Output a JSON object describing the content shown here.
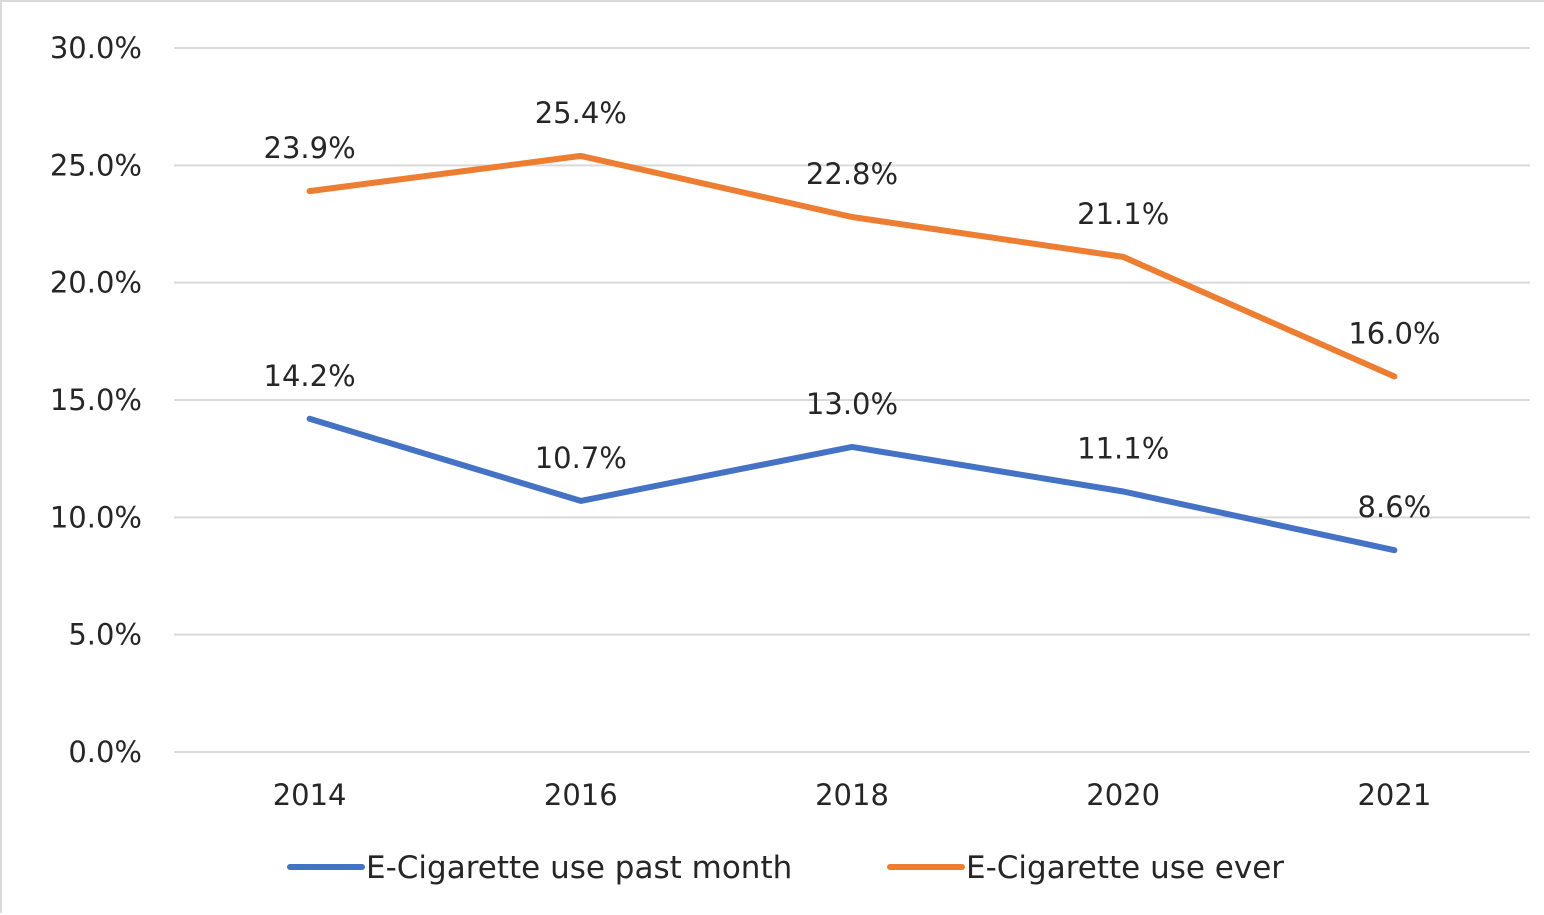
{
  "chart_data": {
    "type": "line",
    "categories": [
      "2014",
      "2016",
      "2018",
      "2020",
      "2021"
    ],
    "series": [
      {
        "name": "E-Cigarette use past month",
        "values": [
          14.2,
          10.7,
          13.0,
          11.1,
          8.6
        ],
        "labels": [
          "14.2%",
          "10.7%",
          "13.0%",
          "11.1%",
          "8.6%"
        ],
        "color": "#4472c4"
      },
      {
        "name": "E-Cigarette use ever",
        "values": [
          23.9,
          25.4,
          22.8,
          21.1,
          16.0
        ],
        "labels": [
          "23.9%",
          "25.4%",
          "22.8%",
          "21.1%",
          "16.0%"
        ],
        "color": "#ed7d31"
      }
    ],
    "y_ticks": [
      "0.0%",
      "5.0%",
      "10.0%",
      "15.0%",
      "20.0%",
      "25.0%",
      "30.0%"
    ],
    "ylim": [
      0,
      30
    ],
    "grid": true,
    "legend_position": "bottom"
  }
}
